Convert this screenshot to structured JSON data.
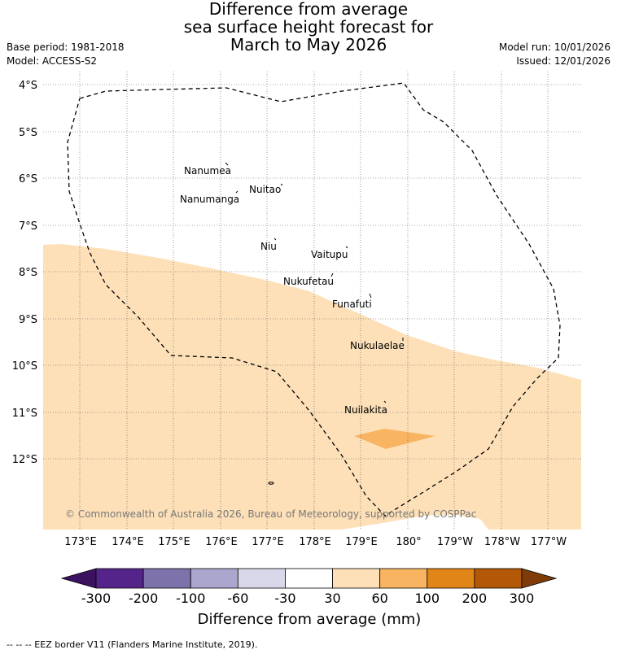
{
  "title": {
    "line1": "Difference from average",
    "line2": "sea surface height forecast for",
    "line3": "March to May 2026"
  },
  "meta": {
    "base_period": "Base period: 1981-2018",
    "model": "Model: ACCESS-S2",
    "model_run": "Model run: 10/01/2026",
    "issued": "Issued: 12/01/2026"
  },
  "map": {
    "lat_labels": [
      "4°S",
      "5°S",
      "6°S",
      "7°S",
      "8°S",
      "9°S",
      "10°S",
      "11°S",
      "12°S"
    ],
    "lon_labels": [
      "173°E",
      "174°E",
      "175°E",
      "176°E",
      "177°E",
      "178°E",
      "179°E",
      "180°",
      "179°W",
      "178°W",
      "177°W"
    ],
    "places": {
      "nanumea": "Nanumea",
      "nuitao": "Nuitao",
      "nanumanga": "Nanumanga",
      "niu": "Niu",
      "vaitupu": "Vaitupu",
      "nukufetau": "Nukufetau",
      "funafuti": "Funafuti",
      "nukulaelae": "Nukulaelae",
      "nuilakita": "Nuilakita"
    },
    "copyright": "© Commonwealth of Australia 2026, Bureau of Meteorology, supported by COSPPac",
    "colors": {
      "band_30_60": "#fde0b8",
      "band_60_100": "#f9b462",
      "grid": "#555555",
      "eez_border": "#000000"
    }
  },
  "colorbar": {
    "ticks": [
      "-300",
      "-200",
      "-100",
      "-60",
      "-30",
      "30",
      "60",
      "100",
      "200",
      "300"
    ],
    "colors": [
      "#3a1260",
      "#54248a",
      "#7e72ab",
      "#aba6ce",
      "#d8d8ea",
      "#ffffff",
      "#fde0b8",
      "#f9b462",
      "#e28519",
      "#b35806",
      "#7f3b08"
    ],
    "label": "Difference from average (mm)"
  },
  "footer": "--  --  -- EEZ border V11 (Flanders Marine Institute, 2019)."
}
